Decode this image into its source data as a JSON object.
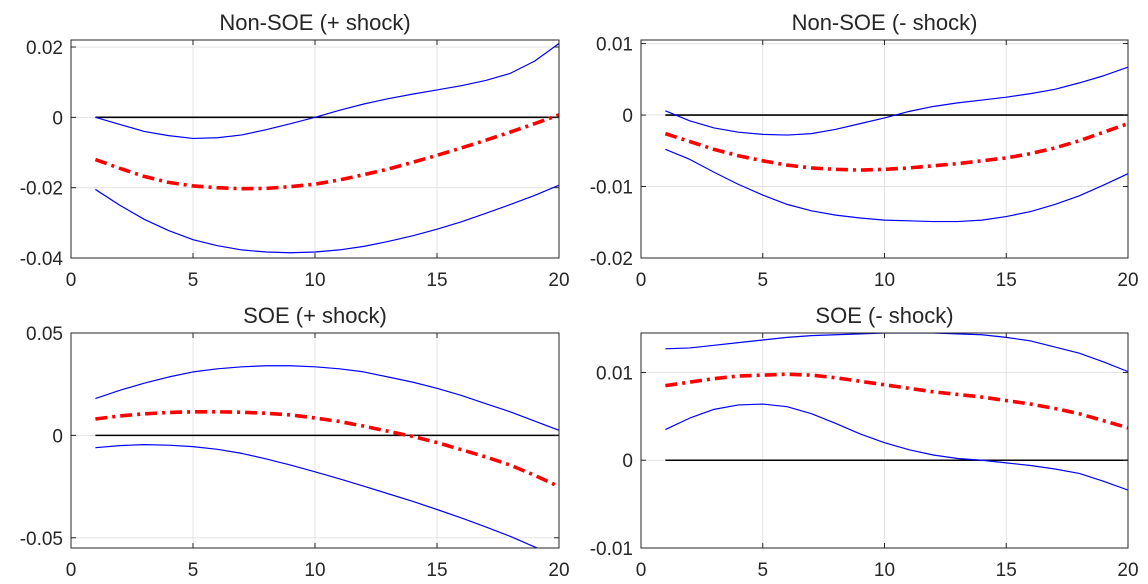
{
  "chart_data": [
    {
      "type": "line",
      "title": "Non-SOE (+ shock)",
      "xlabel": "",
      "ylabel": "",
      "xlim": [
        0,
        20
      ],
      "ylim": [
        -0.04,
        0.022
      ],
      "xticks": [
        0,
        5,
        10,
        15,
        20
      ],
      "xtick_labels": [
        "0",
        "5",
        "10",
        "15",
        "20"
      ],
      "yticks": [
        -0.04,
        -0.02,
        0,
        0.02
      ],
      "ytick_labels": [
        "-0.04",
        "-0.02",
        "0",
        "0.02"
      ],
      "grid": true,
      "x": [
        1,
        2,
        3,
        4,
        5,
        6,
        7,
        8,
        9,
        10,
        11,
        12,
        13,
        14,
        15,
        16,
        17,
        18,
        19,
        20
      ],
      "series": [
        {
          "role": "upper",
          "color": "#0000ff",
          "style": "solid",
          "values": [
            0,
            -0.002,
            -0.004,
            -0.0052,
            -0.006,
            -0.0058,
            -0.005,
            -0.0035,
            -0.0018,
            0,
            0.002,
            0.0038,
            0.0053,
            0.0066,
            0.0078,
            0.009,
            0.0105,
            0.0125,
            0.016,
            0.021
          ]
        },
        {
          "role": "point",
          "color": "#ff0000",
          "style": "dashdot",
          "values": [
            -0.012,
            -0.0145,
            -0.0168,
            -0.0185,
            -0.0195,
            -0.02,
            -0.0203,
            -0.0202,
            -0.0197,
            -0.019,
            -0.0178,
            -0.0163,
            -0.0147,
            -0.0128,
            -0.0108,
            -0.0087,
            -0.0065,
            -0.0042,
            -0.0018,
            0.0007
          ]
        },
        {
          "role": "lower",
          "color": "#0000ff",
          "style": "solid",
          "values": [
            -0.0205,
            -0.025,
            -0.029,
            -0.0322,
            -0.0348,
            -0.0365,
            -0.0377,
            -0.0383,
            -0.0385,
            -0.0383,
            -0.0377,
            -0.0367,
            -0.0353,
            -0.0337,
            -0.0318,
            -0.0297,
            -0.0273,
            -0.0248,
            -0.0222,
            -0.0193
          ]
        },
        {
          "role": "zero",
          "color": "#000000",
          "style": "solid",
          "values": [
            0,
            0,
            0,
            0,
            0,
            0,
            0,
            0,
            0,
            0,
            0,
            0,
            0,
            0,
            0,
            0,
            0,
            0,
            0,
            0
          ]
        }
      ]
    },
    {
      "type": "line",
      "title": "Non-SOE (- shock)",
      "xlabel": "",
      "ylabel": "",
      "xlim": [
        0,
        20
      ],
      "ylim": [
        -0.02,
        0.0105
      ],
      "xticks": [
        0,
        5,
        10,
        15,
        20
      ],
      "xtick_labels": [
        "0",
        "5",
        "10",
        "15",
        "20"
      ],
      "yticks": [
        -0.02,
        -0.01,
        0,
        0.01
      ],
      "ytick_labels": [
        "-0.02",
        "-0.01",
        "0",
        "0.01"
      ],
      "grid": true,
      "x": [
        1,
        2,
        3,
        4,
        5,
        6,
        7,
        8,
        9,
        10,
        11,
        12,
        13,
        14,
        15,
        16,
        17,
        18,
        19,
        20
      ],
      "series": [
        {
          "role": "upper",
          "color": "#0000ff",
          "style": "solid",
          "values": [
            0.0006,
            -0.0008,
            -0.0018,
            -0.0024,
            -0.0027,
            -0.0028,
            -0.0026,
            -0.002,
            -0.0012,
            -0.0004,
            0.0005,
            0.0012,
            0.0017,
            0.0021,
            0.0025,
            0.003,
            0.0036,
            0.0045,
            0.0055,
            0.0067
          ]
        },
        {
          "role": "point",
          "color": "#ff0000",
          "style": "dashdot",
          "values": [
            -0.0026,
            -0.0037,
            -0.0048,
            -0.0057,
            -0.0064,
            -0.007,
            -0.0074,
            -0.0076,
            -0.0077,
            -0.0076,
            -0.0074,
            -0.0071,
            -0.0068,
            -0.0064,
            -0.006,
            -0.0054,
            -0.0046,
            -0.0036,
            -0.0024,
            -0.0012
          ]
        },
        {
          "role": "lower",
          "color": "#0000ff",
          "style": "solid",
          "values": [
            -0.0048,
            -0.0062,
            -0.008,
            -0.0097,
            -0.0112,
            -0.0125,
            -0.0134,
            -0.014,
            -0.0144,
            -0.0147,
            -0.0148,
            -0.0149,
            -0.0149,
            -0.0147,
            -0.0142,
            -0.0135,
            -0.0125,
            -0.0113,
            -0.0098,
            -0.0082
          ]
        },
        {
          "role": "zero",
          "color": "#000000",
          "style": "solid",
          "values": [
            0,
            0,
            0,
            0,
            0,
            0,
            0,
            0,
            0,
            0,
            0,
            0,
            0,
            0,
            0,
            0,
            0,
            0,
            0,
            0
          ]
        }
      ]
    },
    {
      "type": "line",
      "title": "SOE (+ shock)",
      "xlabel": "",
      "ylabel": "",
      "xlim": [
        0,
        20
      ],
      "ylim": [
        -0.055,
        0.05
      ],
      "xticks": [
        0,
        5,
        10,
        15,
        20
      ],
      "xtick_labels": [
        "0",
        "5",
        "10",
        "15",
        "20"
      ],
      "yticks": [
        -0.05,
        0,
        0.05
      ],
      "ytick_labels": [
        "-0.05",
        "0",
        "0.05"
      ],
      "grid": true,
      "x": [
        1,
        2,
        3,
        4,
        5,
        6,
        7,
        8,
        9,
        10,
        11,
        12,
        13,
        14,
        15,
        16,
        17,
        18,
        19,
        20
      ],
      "series": [
        {
          "role": "upper",
          "color": "#0000ff",
          "style": "solid",
          "values": [
            0.018,
            0.022,
            0.0255,
            0.0285,
            0.031,
            0.0325,
            0.0335,
            0.034,
            0.034,
            0.0335,
            0.0325,
            0.031,
            0.0285,
            0.026,
            0.023,
            0.0195,
            0.0155,
            0.0115,
            0.007,
            0.0025
          ]
        },
        {
          "role": "point",
          "color": "#ff0000",
          "style": "dashdot",
          "values": [
            0.008,
            0.0095,
            0.0105,
            0.0112,
            0.0115,
            0.0115,
            0.0113,
            0.0108,
            0.01,
            0.0085,
            0.0068,
            0.0045,
            0.002,
            -0.0005,
            -0.0035,
            -0.007,
            -0.0105,
            -0.0145,
            -0.0195,
            -0.025
          ]
        },
        {
          "role": "lower",
          "color": "#0000ff",
          "style": "solid",
          "values": [
            -0.006,
            -0.005,
            -0.0045,
            -0.0048,
            -0.0055,
            -0.0068,
            -0.0088,
            -0.0115,
            -0.0145,
            -0.0178,
            -0.0212,
            -0.0248,
            -0.0285,
            -0.0322,
            -0.0362,
            -0.0403,
            -0.0447,
            -0.0493,
            -0.0545,
            -0.059
          ]
        },
        {
          "role": "zero",
          "color": "#000000",
          "style": "solid",
          "values": [
            0,
            0,
            0,
            0,
            0,
            0,
            0,
            0,
            0,
            0,
            0,
            0,
            0,
            0,
            0,
            0,
            0,
            0,
            0,
            0
          ]
        }
      ]
    },
    {
      "type": "line",
      "title": "SOE (- shock)",
      "xlabel": "",
      "ylabel": "",
      "xlim": [
        0,
        20
      ],
      "ylim": [
        -0.01,
        0.0145
      ],
      "xticks": [
        0,
        5,
        10,
        15,
        20
      ],
      "xtick_labels": [
        "0",
        "5",
        "10",
        "15",
        "20"
      ],
      "yticks": [
        -0.01,
        0,
        0.01
      ],
      "ytick_labels": [
        "-0.01",
        "0",
        "0.01"
      ],
      "grid": true,
      "x": [
        1,
        2,
        3,
        4,
        5,
        6,
        7,
        8,
        9,
        10,
        11,
        12,
        13,
        14,
        15,
        16,
        17,
        18,
        19,
        20
      ],
      "series": [
        {
          "role": "upper",
          "color": "#0000ff",
          "style": "solid",
          "values": [
            0.0127,
            0.0128,
            0.0131,
            0.0134,
            0.0137,
            0.014,
            0.0142,
            0.0143,
            0.0144,
            0.0145,
            0.0145,
            0.0145,
            0.0144,
            0.0143,
            0.014,
            0.0136,
            0.0129,
            0.0122,
            0.0112,
            0.0101
          ]
        },
        {
          "role": "point",
          "color": "#ff0000",
          "style": "dashdot",
          "values": [
            0.0085,
            0.0089,
            0.0093,
            0.0096,
            0.0097,
            0.0098,
            0.0097,
            0.0094,
            0.009,
            0.0086,
            0.0082,
            0.0078,
            0.0075,
            0.0072,
            0.0068,
            0.0064,
            0.0059,
            0.0053,
            0.0045,
            0.0037
          ]
        },
        {
          "role": "lower",
          "color": "#0000ff",
          "style": "solid",
          "values": [
            0.0035,
            0.0048,
            0.0058,
            0.0063,
            0.0064,
            0.0061,
            0.0053,
            0.0042,
            0.003,
            0.002,
            0.0012,
            0.0006,
            0.0002,
            0.0,
            -0.0003,
            -0.0006,
            -0.001,
            -0.0015,
            -0.0024,
            -0.0034
          ]
        },
        {
          "role": "zero",
          "color": "#000000",
          "style": "solid",
          "values": [
            0,
            0,
            0,
            0,
            0,
            0,
            0,
            0,
            0,
            0,
            0,
            0,
            0,
            0,
            0,
            0,
            0,
            0,
            0,
            0
          ]
        }
      ]
    }
  ]
}
